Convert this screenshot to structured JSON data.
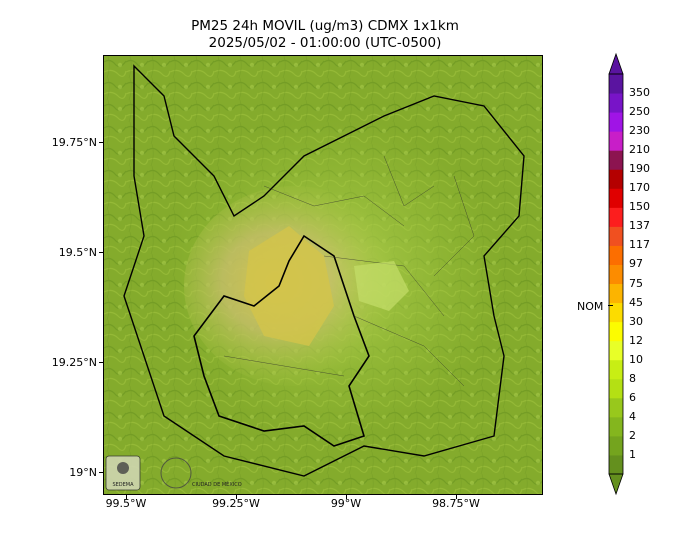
{
  "title": {
    "line1": "PM25 24h MOVIL (ug/m3) CDMX 1x1km",
    "line2": "2025/05/02 - 01:00:00 (UTC-0500)"
  },
  "axes": {
    "x_ticks": [
      "99.5°W",
      "99.25°W",
      "99°W",
      "98.75°W"
    ],
    "y_ticks": [
      "19.75°N",
      "19.5°N",
      "19.25°N",
      "19°N"
    ]
  },
  "colorbar": {
    "levels": [
      "1",
      "2",
      "4",
      "6",
      "8",
      "10",
      "12",
      "30",
      "45",
      "75",
      "97",
      "117",
      "137",
      "150",
      "170",
      "190",
      "210",
      "230",
      "250",
      "350"
    ],
    "colors": [
      "#64901e",
      "#74a41e",
      "#84b61e",
      "#98c81c",
      "#b4e014",
      "#c8ee14",
      "#e8ff28",
      "#fcfc00",
      "#fcdc00",
      "#fcb400",
      "#fc8c00",
      "#fc6e00",
      "#f05020",
      "#fc1e1e",
      "#e00000",
      "#b40000",
      "#8c1450",
      "#c81ec8",
      "#a014e6",
      "#7814c8",
      "#5a14a0"
    ],
    "reference_label": "NOM"
  },
  "map": {
    "background_colors": [
      "#7fa82a",
      "#a2c83c",
      "#cfc25a"
    ],
    "logos": [
      "SEDEMA",
      "CIUDAD DE MÉXICO"
    ]
  }
}
